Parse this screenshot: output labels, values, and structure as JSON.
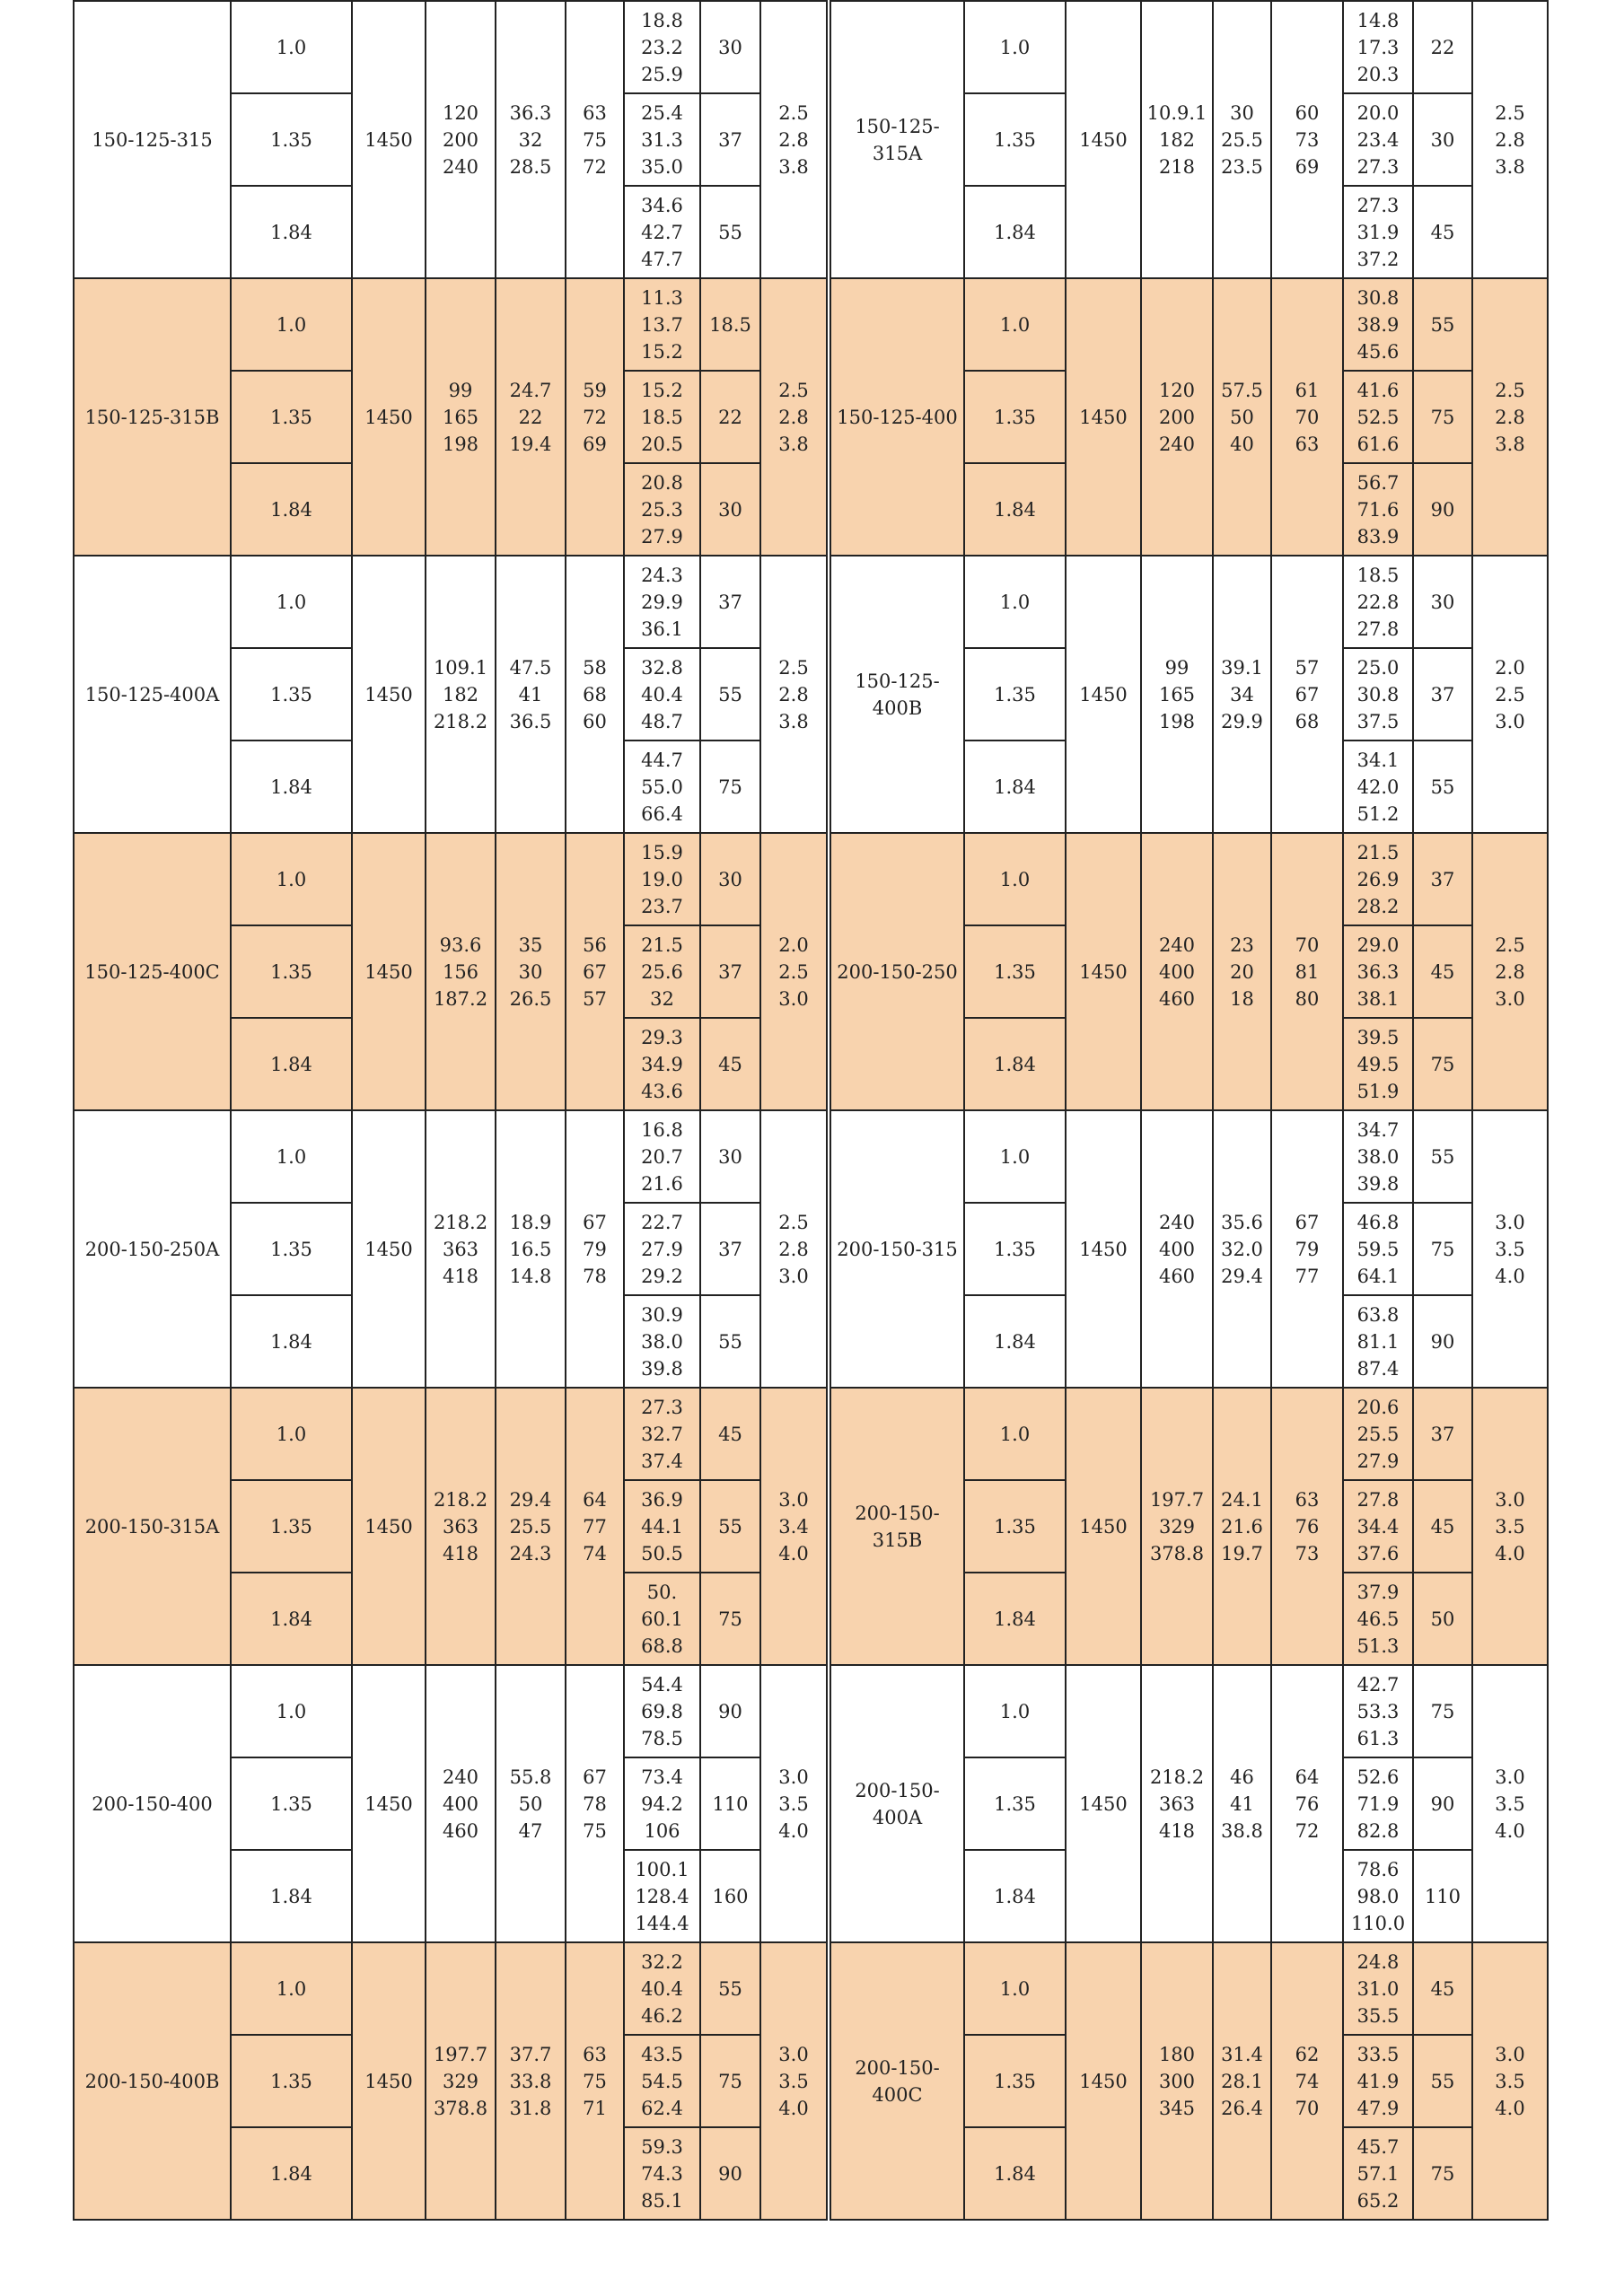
{
  "colors": {
    "shaded_row": "#f8d3ae",
    "border": "#222222"
  },
  "ratios": [
    "1.0",
    "1.35",
    "1.84"
  ],
  "groups": [
    {
      "shaded": false,
      "left": {
        "model": "150-125-315",
        "speed": "1450",
        "flow": "120\n200\n240",
        "head": "36.3\n32\n28.5",
        "eff": "63\n75\n72",
        "power": [
          "18.8\n23.2\n25.9",
          "25.4\n31.3\n35.0",
          "34.6\n42.7\n47.7"
        ],
        "motor": [
          "30",
          "37",
          "55"
        ],
        "npsh": "2.5\n2.8\n3.8"
      },
      "right": {
        "model": "150-125-315A",
        "speed": "1450",
        "flow": "10.9.1\n182\n218",
        "head": "30\n25.5\n23.5",
        "eff": "60\n73\n69",
        "power": [
          "14.8\n17.3\n20.3",
          "20.0\n23.4\n27.3",
          "27.3\n31.9\n37.2"
        ],
        "motor": [
          "22",
          "30",
          "45"
        ],
        "npsh": "2.5\n2.8\n3.8"
      }
    },
    {
      "shaded": true,
      "left": {
        "model": "150-125-315B",
        "speed": "1450",
        "flow": "99\n165\n198",
        "head": "24.7\n22\n19.4",
        "eff": "59\n72\n69",
        "power": [
          "11.3\n13.7\n15.2",
          "15.2\n18.5\n20.5",
          "20.8\n25.3\n27.9"
        ],
        "motor": [
          "18.5",
          "22",
          "30"
        ],
        "npsh": "2.5\n2.8\n3.8"
      },
      "right": {
        "model": "150-125-400",
        "speed": "1450",
        "flow": "120\n200\n240",
        "head": "57.5\n50\n40",
        "eff": "61\n70\n63",
        "power": [
          "30.8\n38.9\n45.6",
          "41.6\n52.5\n61.6",
          "56.7\n71.6\n83.9"
        ],
        "motor": [
          "55",
          "75",
          "90"
        ],
        "npsh": "2.5\n2.8\n3.8"
      }
    },
    {
      "shaded": false,
      "left": {
        "model": "150-125-400A",
        "speed": "1450",
        "flow": "109.1\n182\n218.2",
        "head": "47.5\n41\n36.5",
        "eff": "58\n68\n60",
        "power": [
          "24.3\n29.9\n36.1",
          "32.8\n40.4\n48.7",
          "44.7\n55.0\n66.4"
        ],
        "motor": [
          "37",
          "55",
          "75"
        ],
        "npsh": "2.5\n2.8\n3.8"
      },
      "right": {
        "model": "150-125-400B",
        "speed": "1450",
        "flow": "99\n165\n198",
        "head": "39.1\n34\n29.9",
        "eff": "57\n67\n68",
        "power": [
          "18.5\n22.8\n27.8",
          "25.0\n30.8\n37.5",
          "34.1\n42.0\n51.2"
        ],
        "motor": [
          "30",
          "37",
          "55"
        ],
        "npsh": "2.0\n2.5\n3.0"
      }
    },
    {
      "shaded": true,
      "left": {
        "model": "150-125-400C",
        "speed": "1450",
        "flow": "93.6\n156\n187.2",
        "head": "35\n30\n26.5",
        "eff": "56\n67\n57",
        "power": [
          "15.9\n19.0\n23.7",
          "21.5\n25.6\n32",
          "29.3\n34.9\n43.6"
        ],
        "motor": [
          "30",
          "37",
          "45"
        ],
        "npsh": "2.0\n2.5\n3.0"
      },
      "right": {
        "model": "200-150-250",
        "speed": "1450",
        "flow": "240\n400\n460",
        "head": "23\n20\n18",
        "eff": "70\n81\n80",
        "power": [
          "21.5\n26.9\n28.2",
          "29.0\n36.3\n38.1",
          "39.5\n49.5\n51.9"
        ],
        "motor": [
          "37",
          "45",
          "75"
        ],
        "npsh": "2.5\n2.8\n3.0"
      }
    },
    {
      "shaded": false,
      "left": {
        "model": "200-150-250A",
        "speed": "1450",
        "flow": "218.2\n363\n418",
        "head": "18.9\n16.5\n14.8",
        "eff": "67\n79\n78",
        "power": [
          "16.8\n20.7\n21.6",
          "22.7\n27.9\n29.2",
          "30.9\n38.0\n39.8"
        ],
        "motor": [
          "30",
          "37",
          "55"
        ],
        "npsh": "2.5\n2.8\n3.0"
      },
      "right": {
        "model": "200-150-315",
        "speed": "1450",
        "flow": "240\n400\n460",
        "head": "35.6\n32.0\n29.4",
        "eff": "67\n79\n77",
        "power": [
          "34.7\n38.0\n39.8",
          "46.8\n59.5\n64.1",
          "63.8\n81.1\n87.4"
        ],
        "motor": [
          "55",
          "75",
          "90"
        ],
        "npsh": "3.0\n3.5\n4.0"
      }
    },
    {
      "shaded": true,
      "left": {
        "model": "200-150-315A",
        "speed": "1450",
        "flow": "218.2\n363\n418",
        "head": "29.4\n25.5\n24.3",
        "eff": "64\n77\n74",
        "power": [
          "27.3\n32.7\n37.4",
          "36.9\n44.1\n50.5",
          "50.\n60.1\n68.8"
        ],
        "motor": [
          "45",
          "55",
          "75"
        ],
        "npsh": "3.0\n3.4\n4.0"
      },
      "right": {
        "model": "200-150-315B",
        "speed": "1450",
        "flow": "197.7\n329\n378.8",
        "head": "24.1\n21.6\n19.7",
        "eff": "63\n76\n73",
        "power": [
          "20.6\n25.5\n27.9",
          "27.8\n34.4\n37.6",
          "37.9\n46.5\n51.3"
        ],
        "motor": [
          "37",
          "45",
          "50"
        ],
        "npsh": "3.0\n3.5\n4.0"
      }
    },
    {
      "shaded": false,
      "left": {
        "model": "200-150-400",
        "speed": "1450",
        "flow": "240\n400\n460",
        "head": "55.8\n50\n47",
        "eff": "67\n78\n75",
        "power": [
          "54.4\n69.8\n78.5",
          "73.4\n94.2\n106",
          "100.1\n128.4\n144.4"
        ],
        "motor": [
          "90",
          "110",
          "160"
        ],
        "npsh": "3.0\n3.5\n4.0"
      },
      "right": {
        "model": "200-150-400A",
        "speed": "1450",
        "flow": "218.2\n363\n418",
        "head": "46\n41\n38.8",
        "eff": "64\n76\n72",
        "power": [
          "42.7\n53.3\n61.3",
          "52.6\n71.9\n82.8",
          "78.6\n98.0\n110.0"
        ],
        "motor": [
          "75",
          "90",
          "110"
        ],
        "npsh": "3.0\n3.5\n4.0"
      }
    },
    {
      "shaded": true,
      "left": {
        "model": "200-150-400B",
        "speed": "1450",
        "flow": "197.7\n329\n378.8",
        "head": "37.7\n33.8\n31.8",
        "eff": "63\n75\n71",
        "power": [
          "32.2\n40.4\n46.2",
          "43.5\n54.5\n62.4",
          "59.3\n74.3\n85.1"
        ],
        "motor": [
          "55",
          "75",
          "90"
        ],
        "npsh": "3.0\n3.5\n4.0"
      },
      "right": {
        "model": "200-150-400C",
        "speed": "1450",
        "flow": "180\n300\n345",
        "head": "31.4\n28.1\n26.4",
        "eff": "62\n74\n70",
        "power": [
          "24.8\n31.0\n35.5",
          "33.5\n41.9\n47.9",
          "45.7\n57.1\n65.2"
        ],
        "motor": [
          "45",
          "55",
          "75"
        ],
        "npsh": "3.0\n3.5\n4.0"
      }
    }
  ]
}
